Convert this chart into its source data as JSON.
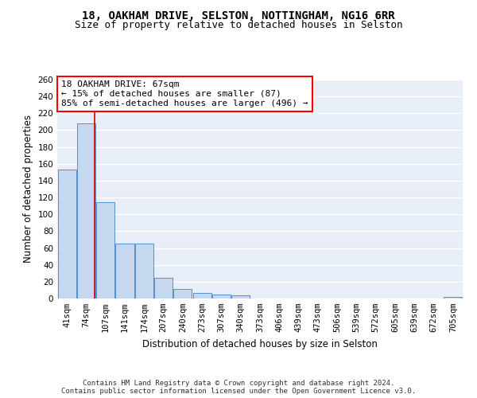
{
  "title1": "18, OAKHAM DRIVE, SELSTON, NOTTINGHAM, NG16 6RR",
  "title2": "Size of property relative to detached houses in Selston",
  "xlabel": "Distribution of detached houses by size in Selston",
  "ylabel": "Number of detached properties",
  "categories": [
    "41sqm",
    "74sqm",
    "107sqm",
    "141sqm",
    "174sqm",
    "207sqm",
    "240sqm",
    "273sqm",
    "307sqm",
    "340sqm",
    "373sqm",
    "406sqm",
    "439sqm",
    "473sqm",
    "506sqm",
    "539sqm",
    "572sqm",
    "605sqm",
    "639sqm",
    "672sqm",
    "705sqm"
  ],
  "values": [
    153,
    208,
    114,
    65,
    65,
    25,
    11,
    7,
    5,
    4,
    0,
    0,
    0,
    0,
    0,
    0,
    0,
    0,
    0,
    0,
    2
  ],
  "bar_color": "#c5d8f0",
  "bar_edge_color": "#5590c8",
  "background_color": "#e8eef8",
  "grid_color": "#ffffff",
  "annotation_box_text": "18 OAKHAM DRIVE: 67sqm\n← 15% of detached houses are smaller (87)\n85% of semi-detached houses are larger (496) →",
  "property_line_x": 1.45,
  "ylim": [
    0,
    260
  ],
  "yticks": [
    0,
    20,
    40,
    60,
    80,
    100,
    120,
    140,
    160,
    180,
    200,
    220,
    240,
    260
  ],
  "footnote_line1": "Contains HM Land Registry data © Crown copyright and database right 2024.",
  "footnote_line2": "Contains public sector information licensed under the Open Government Licence v3.0.",
  "title1_fontsize": 10,
  "title2_fontsize": 9,
  "xlabel_fontsize": 8.5,
  "ylabel_fontsize": 8.5,
  "tick_fontsize": 7.5,
  "annotation_fontsize": 8,
  "footnote_fontsize": 6.5
}
